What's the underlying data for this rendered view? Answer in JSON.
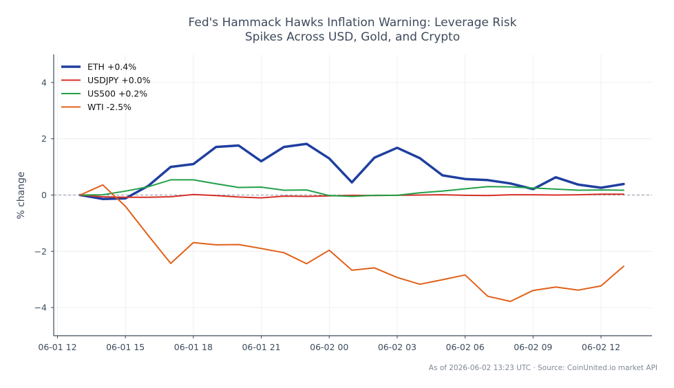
{
  "chart_data": {
    "type": "line",
    "title_lines": [
      "Fed's Hammack Hawks Inflation Warning: Leverage Risk",
      "Spikes Across USD, Gold, and Crypto"
    ],
    "xlabel": "",
    "ylabel": "% change",
    "xlim": [
      "2026-06-01 11:50",
      "2026-06-02 14:15"
    ],
    "ylim": [
      -5,
      5
    ],
    "x_ticks": [
      {
        "t": "2026-06-01 12:00",
        "label": "06-01 12"
      },
      {
        "t": "2026-06-01 15:00",
        "label": "06-01 15"
      },
      {
        "t": "2026-06-01 18:00",
        "label": "06-01 18"
      },
      {
        "t": "2026-06-01 21:00",
        "label": "06-01 21"
      },
      {
        "t": "2026-06-02 00:00",
        "label": "06-02 00"
      },
      {
        "t": "2026-06-02 03:00",
        "label": "06-02 03"
      },
      {
        "t": "2026-06-02 06:00",
        "label": "06-02 06"
      },
      {
        "t": "2026-06-02 09:00",
        "label": "06-02 09"
      },
      {
        "t": "2026-06-02 12:00",
        "label": "06-02 12"
      }
    ],
    "y_ticks": [
      -4,
      -2,
      0,
      2,
      4
    ],
    "y_tick_labels": [
      "−4",
      "−2",
      "0",
      "2",
      "4"
    ],
    "x": [
      "2026-06-01 13:00",
      "2026-06-01 14:00",
      "2026-06-01 15:00",
      "2026-06-01 16:00",
      "2026-06-01 17:00",
      "2026-06-01 18:00",
      "2026-06-01 19:00",
      "2026-06-01 20:00",
      "2026-06-01 21:00",
      "2026-06-01 22:00",
      "2026-06-01 23:00",
      "2026-06-02 00:00",
      "2026-06-02 01:00",
      "2026-06-02 02:00",
      "2026-06-02 03:00",
      "2026-06-02 04:00",
      "2026-06-02 05:00",
      "2026-06-02 06:00",
      "2026-06-02 07:00",
      "2026-06-02 08:00",
      "2026-06-02 09:00",
      "2026-06-02 10:00",
      "2026-06-02 11:00",
      "2026-06-02 12:00",
      "2026-06-02 13:00"
    ],
    "series": [
      {
        "name": "ETH +0.4%",
        "color": "#1f3f9f",
        "width": 3.5,
        "values": [
          0.0,
          -0.14,
          -0.12,
          0.32,
          1.0,
          1.1,
          1.71,
          1.76,
          1.2,
          1.71,
          1.82,
          1.3,
          0.45,
          1.33,
          1.68,
          1.31,
          0.7,
          0.57,
          0.53,
          0.41,
          0.21,
          0.63,
          0.37,
          0.26,
          0.39
        ]
      },
      {
        "name": "USDJPY +0.0%",
        "color": "#d62f28",
        "width": 2,
        "values": [
          0.0,
          -0.06,
          -0.08,
          -0.08,
          -0.06,
          0.02,
          -0.02,
          -0.07,
          -0.1,
          -0.04,
          -0.05,
          -0.03,
          -0.01,
          -0.02,
          -0.01,
          0.0,
          0.01,
          -0.01,
          -0.02,
          0.01,
          0.01,
          0.0,
          0.01,
          0.03,
          0.03
        ]
      },
      {
        "name": "US500 +0.2%",
        "color": "#22a048",
        "width": 2,
        "values": [
          0.0,
          0.01,
          0.14,
          0.29,
          0.54,
          0.54,
          0.4,
          0.27,
          0.28,
          0.17,
          0.18,
          -0.02,
          -0.05,
          -0.01,
          -0.01,
          0.08,
          0.14,
          0.22,
          0.3,
          0.29,
          0.25,
          0.21,
          0.17,
          0.18,
          0.17
        ]
      },
      {
        "name": "WTI -2.5%",
        "color": "#e06018",
        "width": 2,
        "values": [
          0.0,
          0.36,
          -0.4,
          -1.43,
          -2.43,
          -1.69,
          -1.77,
          -1.76,
          -1.9,
          -2.05,
          -2.44,
          -1.96,
          -2.67,
          -2.59,
          -2.93,
          -3.17,
          -3.01,
          -2.84,
          -3.6,
          -3.78,
          -3.39,
          -3.27,
          -3.38,
          -3.23,
          -2.53
        ]
      }
    ],
    "zero_line": true,
    "grid": true,
    "legend_position": "top-left",
    "source_note": "As of 2026-06-02 13:23 UTC · Source: CoinUnited.io market API"
  }
}
